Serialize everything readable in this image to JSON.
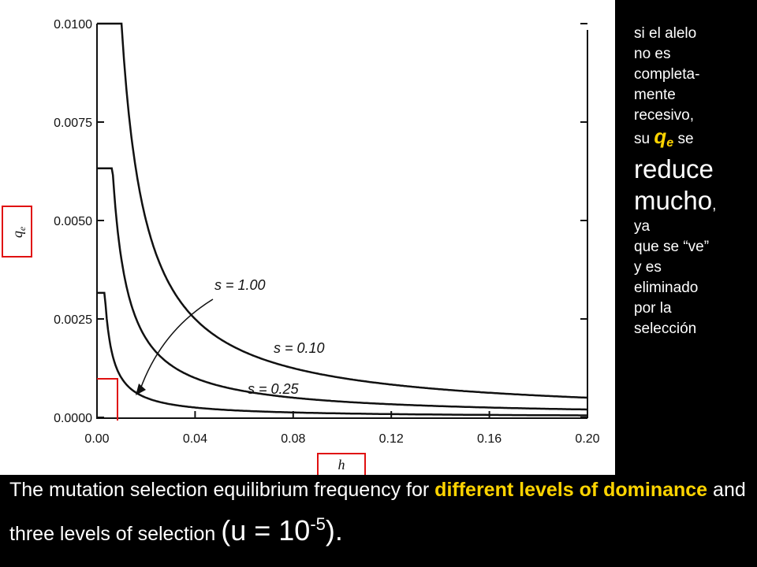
{
  "chart_data": {
    "type": "line",
    "xlabel": "h",
    "ylabel": "q",
    "ylabel_sub": "e",
    "xlim": [
      0,
      0.2
    ],
    "ylim": [
      0,
      0.01
    ],
    "x_ticks": [
      "0.00",
      "0.04",
      "0.08",
      "0.12",
      "0.16",
      "0.20"
    ],
    "y_ticks": [
      "0.0000",
      "0.0025",
      "0.0050",
      "0.0075",
      "0.0100"
    ],
    "x_tick_values": [
      0,
      0.04,
      0.08,
      0.12,
      0.16,
      0.2
    ],
    "y_tick_values": [
      0,
      0.0025,
      0.005,
      0.0075,
      0.01
    ],
    "mutation_rate": 1e-05,
    "series": [
      {
        "name": "s = 0.10",
        "s": 0.1
      },
      {
        "name": "s = 0.25",
        "s": 0.25
      },
      {
        "name": "s = 1.00",
        "s": 1.0
      }
    ],
    "annotations": [
      "s = 1.00",
      "s = 0.10",
      "s = 0.25"
    ],
    "line_color": "#111111",
    "highlight_color": "#e01010"
  },
  "side_note": {
    "line1": "si el alelo",
    "line2": "no es",
    "line3": "completa-",
    "line4": "mente",
    "line5": "recesivo,",
    "line6_pre": "su",
    "q_symbol": "q",
    "q_sub": "e",
    "line6_post": "se",
    "line7": "reduce",
    "line8_a": "mucho",
    "line8_b": ",",
    "line9": "ya",
    "line10": "que se “ve”",
    "line11": "y es",
    "line12": "eliminado",
    "line13": "por la",
    "line14": "selección"
  },
  "caption": {
    "part1": "The mutation selection equilibrium frequency for",
    "part2": "different levels of dominance",
    "part3": "and three levels of selection",
    "part4": "(u = 10",
    "part5": "-5",
    "part6": ")."
  },
  "colors": {
    "background": "#000000",
    "panel": "#ffffff",
    "text": "#ffffff",
    "accent": "#ffd400"
  }
}
